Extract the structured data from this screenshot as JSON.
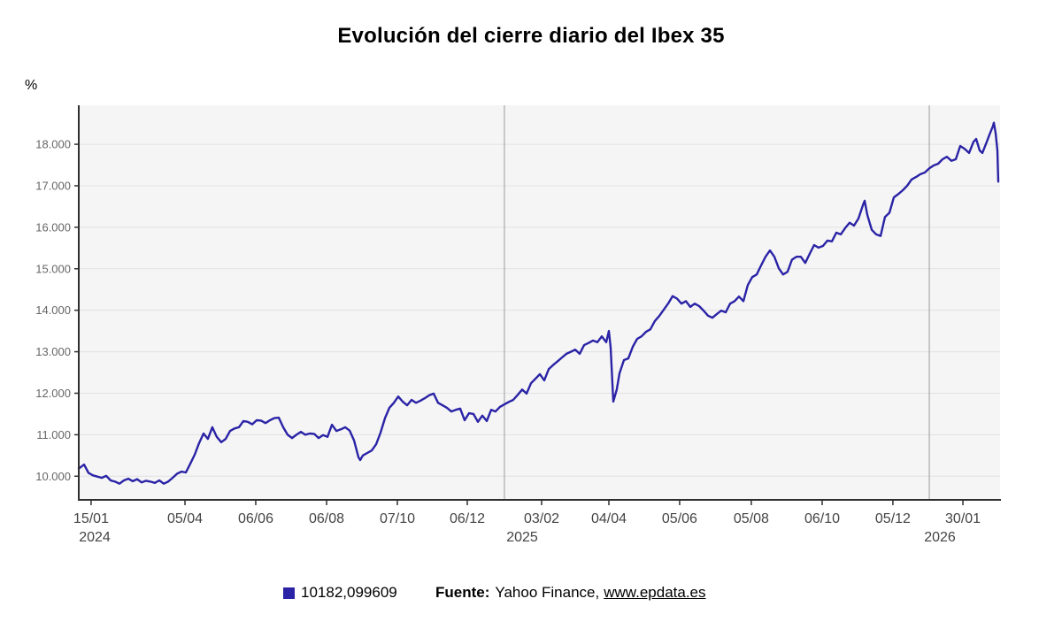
{
  "title": "Evolución del cierre diario del Ibex 35",
  "y_unit": "%",
  "legend": {
    "value": "10182,099609",
    "color": "#2A23A6"
  },
  "source": {
    "label": "Fuente:",
    "text": "Yahoo Finance,",
    "link": "www.epdata.es"
  },
  "chart_data": {
    "type": "line",
    "title": "Evolución del cierre diario del Ibex 35",
    "series_name": "10182,099609",
    "ylabel": "%",
    "ylim": [
      9430,
      18940
    ],
    "grid": true,
    "legend_position": "bottom",
    "line_color": "#2A23A6",
    "plot_bg": "#f5f5f5",
    "grid_color": "#e2e2e2",
    "separator_color": "#9a9a9a",
    "axis_color": "#2f2f2f",
    "y_tick_color": "#666666",
    "x_tick_color": "#444444",
    "y_ticks": [
      {
        "label": "10.000",
        "v": 10000
      },
      {
        "label": "11.000",
        "v": 11000
      },
      {
        "label": "12.000",
        "v": 12000
      },
      {
        "label": "13.000",
        "v": 13000
      },
      {
        "label": "14.000",
        "v": 14000
      },
      {
        "label": "15.000",
        "v": 15000
      },
      {
        "label": "16.000",
        "v": 16000
      },
      {
        "label": "17.000",
        "v": 17000
      },
      {
        "label": "18.000",
        "v": 18000
      }
    ],
    "x_ticks": [
      {
        "label": "15/01",
        "f": 0.0134
      },
      {
        "label": "05/04",
        "f": 0.1153
      },
      {
        "label": "06/06",
        "f": 0.1921
      },
      {
        "label": "06/08",
        "f": 0.269
      },
      {
        "label": "07/10",
        "f": 0.3458
      },
      {
        "label": "06/12",
        "f": 0.4217
      },
      {
        "label": "03/02",
        "f": 0.5024
      },
      {
        "label": "04/04",
        "f": 0.5754
      },
      {
        "label": "05/06",
        "f": 0.6522
      },
      {
        "label": "05/08",
        "f": 0.73
      },
      {
        "label": "06/10",
        "f": 0.8069
      },
      {
        "label": "05/12",
        "f": 0.8837
      },
      {
        "label": "30/01",
        "f": 0.9597
      }
    ],
    "year_labels": [
      {
        "label": "2024",
        "f": 0.0173
      },
      {
        "label": "2025",
        "f": 0.4813
      },
      {
        "label": "2026",
        "f": 0.9347
      }
    ],
    "year_separators": [
      0.462,
      0.9232
    ],
    "points": [
      [
        0.0,
        10182
      ],
      [
        0.0058,
        10280
      ],
      [
        0.0106,
        10080
      ],
      [
        0.0154,
        10020
      ],
      [
        0.0202,
        9990
      ],
      [
        0.025,
        9960
      ],
      [
        0.0298,
        10010
      ],
      [
        0.0346,
        9900
      ],
      [
        0.0394,
        9870
      ],
      [
        0.0442,
        9820
      ],
      [
        0.049,
        9900
      ],
      [
        0.0538,
        9940
      ],
      [
        0.0586,
        9880
      ],
      [
        0.0634,
        9930
      ],
      [
        0.0682,
        9850
      ],
      [
        0.073,
        9890
      ],
      [
        0.0778,
        9870
      ],
      [
        0.0826,
        9840
      ],
      [
        0.0874,
        9900
      ],
      [
        0.0922,
        9820
      ],
      [
        0.097,
        9870
      ],
      [
        0.1018,
        9960
      ],
      [
        0.1066,
        10060
      ],
      [
        0.1114,
        10110
      ],
      [
        0.1162,
        10090
      ],
      [
        0.121,
        10300
      ],
      [
        0.1258,
        10520
      ],
      [
        0.1306,
        10800
      ],
      [
        0.1354,
        11030
      ],
      [
        0.1402,
        10900
      ],
      [
        0.145,
        11180
      ],
      [
        0.1498,
        10950
      ],
      [
        0.1547,
        10820
      ],
      [
        0.1595,
        10900
      ],
      [
        0.1643,
        11090
      ],
      [
        0.1691,
        11150
      ],
      [
        0.1739,
        11180
      ],
      [
        0.1787,
        11330
      ],
      [
        0.1835,
        11310
      ],
      [
        0.1883,
        11250
      ],
      [
        0.1931,
        11350
      ],
      [
        0.1979,
        11340
      ],
      [
        0.2027,
        11280
      ],
      [
        0.2075,
        11350
      ],
      [
        0.2123,
        11400
      ],
      [
        0.2171,
        11410
      ],
      [
        0.2219,
        11180
      ],
      [
        0.2267,
        11000
      ],
      [
        0.2315,
        10920
      ],
      [
        0.2363,
        11000
      ],
      [
        0.2411,
        11070
      ],
      [
        0.2459,
        11000
      ],
      [
        0.2507,
        11030
      ],
      [
        0.2555,
        11020
      ],
      [
        0.2603,
        10920
      ],
      [
        0.2651,
        10990
      ],
      [
        0.27,
        10950
      ],
      [
        0.2748,
        11240
      ],
      [
        0.2796,
        11090
      ],
      [
        0.2844,
        11130
      ],
      [
        0.2892,
        11180
      ],
      [
        0.294,
        11100
      ],
      [
        0.2988,
        10860
      ],
      [
        0.3036,
        10460
      ],
      [
        0.3055,
        10390
      ],
      [
        0.3084,
        10500
      ],
      [
        0.3132,
        10560
      ],
      [
        0.318,
        10620
      ],
      [
        0.3228,
        10770
      ],
      [
        0.3276,
        11050
      ],
      [
        0.3324,
        11400
      ],
      [
        0.3372,
        11650
      ],
      [
        0.342,
        11770
      ],
      [
        0.3468,
        11920
      ],
      [
        0.3516,
        11800
      ],
      [
        0.3564,
        11710
      ],
      [
        0.3612,
        11840
      ],
      [
        0.366,
        11770
      ],
      [
        0.3708,
        11820
      ],
      [
        0.3756,
        11880
      ],
      [
        0.3804,
        11950
      ],
      [
        0.3852,
        11990
      ],
      [
        0.39,
        11770
      ],
      [
        0.3948,
        11710
      ],
      [
        0.3996,
        11650
      ],
      [
        0.4044,
        11560
      ],
      [
        0.4092,
        11600
      ],
      [
        0.414,
        11630
      ],
      [
        0.4188,
        11350
      ],
      [
        0.4236,
        11520
      ],
      [
        0.4284,
        11500
      ],
      [
        0.4332,
        11310
      ],
      [
        0.438,
        11460
      ],
      [
        0.4428,
        11330
      ],
      [
        0.4476,
        11600
      ],
      [
        0.4524,
        11560
      ],
      [
        0.4572,
        11670
      ],
      [
        0.462,
        11730
      ],
      [
        0.4668,
        11790
      ],
      [
        0.4716,
        11840
      ],
      [
        0.4765,
        11960
      ],
      [
        0.4813,
        12090
      ],
      [
        0.4861,
        11990
      ],
      [
        0.4909,
        12240
      ],
      [
        0.4957,
        12350
      ],
      [
        0.5005,
        12460
      ],
      [
        0.5053,
        12310
      ],
      [
        0.5101,
        12580
      ],
      [
        0.5149,
        12680
      ],
      [
        0.5197,
        12770
      ],
      [
        0.5245,
        12860
      ],
      [
        0.5293,
        12950
      ],
      [
        0.5341,
        13000
      ],
      [
        0.5389,
        13050
      ],
      [
        0.5437,
        12950
      ],
      [
        0.5485,
        13160
      ],
      [
        0.5533,
        13210
      ],
      [
        0.5581,
        13270
      ],
      [
        0.5629,
        13230
      ],
      [
        0.5677,
        13370
      ],
      [
        0.5725,
        13230
      ],
      [
        0.5754,
        13500
      ],
      [
        0.5773,
        13100
      ],
      [
        0.5802,
        11800
      ],
      [
        0.584,
        12090
      ],
      [
        0.5869,
        12480
      ],
      [
        0.5917,
        12800
      ],
      [
        0.5965,
        12840
      ],
      [
        0.6013,
        13120
      ],
      [
        0.6061,
        13310
      ],
      [
        0.6109,
        13370
      ],
      [
        0.6157,
        13480
      ],
      [
        0.6205,
        13540
      ],
      [
        0.6253,
        13740
      ],
      [
        0.6301,
        13860
      ],
      [
        0.6349,
        14010
      ],
      [
        0.6397,
        14160
      ],
      [
        0.6446,
        14340
      ],
      [
        0.6494,
        14280
      ],
      [
        0.6542,
        14160
      ],
      [
        0.659,
        14220
      ],
      [
        0.6638,
        14080
      ],
      [
        0.6686,
        14160
      ],
      [
        0.6734,
        14100
      ],
      [
        0.6782,
        13990
      ],
      [
        0.683,
        13870
      ],
      [
        0.6878,
        13820
      ],
      [
        0.6926,
        13910
      ],
      [
        0.6974,
        13990
      ],
      [
        0.7022,
        13950
      ],
      [
        0.707,
        14160
      ],
      [
        0.7118,
        14220
      ],
      [
        0.7166,
        14330
      ],
      [
        0.7214,
        14220
      ],
      [
        0.7262,
        14610
      ],
      [
        0.731,
        14800
      ],
      [
        0.7358,
        14860
      ],
      [
        0.7406,
        15080
      ],
      [
        0.7454,
        15290
      ],
      [
        0.7502,
        15440
      ],
      [
        0.755,
        15290
      ],
      [
        0.7598,
        15010
      ],
      [
        0.7646,
        14860
      ],
      [
        0.7694,
        14930
      ],
      [
        0.7742,
        15220
      ],
      [
        0.779,
        15290
      ],
      [
        0.7838,
        15290
      ],
      [
        0.7886,
        15140
      ],
      [
        0.7934,
        15360
      ],
      [
        0.7982,
        15570
      ],
      [
        0.803,
        15510
      ],
      [
        0.8078,
        15550
      ],
      [
        0.8127,
        15680
      ],
      [
        0.8175,
        15660
      ],
      [
        0.8223,
        15870
      ],
      [
        0.8271,
        15830
      ],
      [
        0.8319,
        15980
      ],
      [
        0.8367,
        16110
      ],
      [
        0.8415,
        16040
      ],
      [
        0.8463,
        16210
      ],
      [
        0.8511,
        16530
      ],
      [
        0.853,
        16640
      ],
      [
        0.8559,
        16300
      ],
      [
        0.8607,
        15940
      ],
      [
        0.8655,
        15830
      ],
      [
        0.8703,
        15790
      ],
      [
        0.8751,
        16250
      ],
      [
        0.8799,
        16350
      ],
      [
        0.8847,
        16720
      ],
      [
        0.8895,
        16800
      ],
      [
        0.8943,
        16890
      ],
      [
        0.8991,
        17000
      ],
      [
        0.9039,
        17150
      ],
      [
        0.9087,
        17210
      ],
      [
        0.9135,
        17280
      ],
      [
        0.9183,
        17320
      ],
      [
        0.9232,
        17420
      ],
      [
        0.928,
        17490
      ],
      [
        0.9328,
        17530
      ],
      [
        0.9376,
        17640
      ],
      [
        0.9424,
        17700
      ],
      [
        0.9472,
        17600
      ],
      [
        0.952,
        17640
      ],
      [
        0.9568,
        17960
      ],
      [
        0.9616,
        17890
      ],
      [
        0.9664,
        17790
      ],
      [
        0.9712,
        18060
      ],
      [
        0.9741,
        18130
      ],
      [
        0.9779,
        17850
      ],
      [
        0.9808,
        17790
      ],
      [
        0.9856,
        18060
      ],
      [
        0.9885,
        18230
      ],
      [
        0.9923,
        18440
      ],
      [
        0.9933,
        18520
      ],
      [
        0.9952,
        18270
      ],
      [
        0.9971,
        17850
      ],
      [
        0.9981,
        17100
      ]
    ]
  }
}
